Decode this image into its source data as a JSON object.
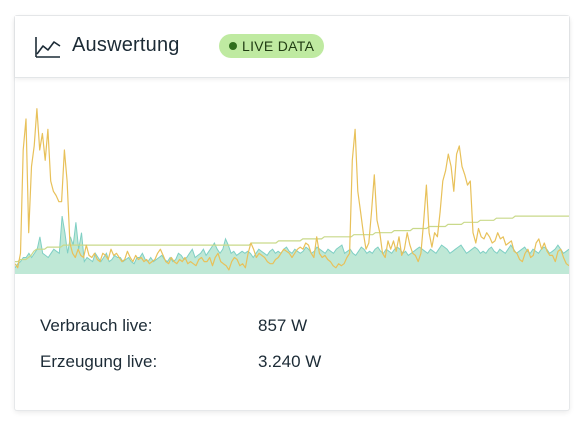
{
  "header": {
    "title": "Auswertung",
    "live_badge": "LIVE DATA",
    "icon": "line-chart-icon"
  },
  "colors": {
    "consumption_line": "#e8c15a",
    "base_line": "#c9d98a",
    "production_area": "#bfe8d6",
    "production_stroke": "#7fcfc4",
    "live_badge_bg": "#bfeaa1",
    "live_dot": "#2f6e1b"
  },
  "chart_data": {
    "type": "area",
    "series": [
      {
        "values": [
          5,
          3,
          10,
          60,
          75,
          20,
          52,
          62,
          80,
          60,
          68,
          55,
          70,
          45,
          40,
          38,
          35,
          35,
          60,
          45,
          15,
          10,
          8,
          12,
          9,
          8,
          14,
          9,
          8,
          10,
          7,
          6,
          10,
          9,
          7,
          12,
          9,
          10,
          8,
          6,
          7,
          11,
          8,
          6,
          9,
          7,
          8,
          6,
          7,
          5,
          6,
          7,
          10,
          12,
          9,
          6,
          5,
          8,
          6,
          5,
          7,
          6,
          8,
          5,
          6,
          5,
          4,
          7,
          8,
          6,
          6,
          8,
          4,
          8,
          10,
          6,
          5,
          4,
          2,
          6,
          8,
          7,
          4,
          5,
          3,
          10,
          15,
          12,
          8,
          10,
          9,
          8,
          6,
          5,
          5,
          7,
          8,
          10,
          12,
          11,
          10,
          8,
          10,
          12,
          13,
          12,
          15,
          14,
          10,
          8,
          18,
          10,
          8,
          9,
          7,
          6,
          4,
          3,
          5,
          4,
          5,
          8,
          10,
          55,
          70,
          40,
          30,
          20,
          12,
          15,
          30,
          48,
          26,
          20,
          10,
          8,
          16,
          12,
          16,
          11,
          18,
          9,
          12,
          20,
          14,
          10,
          9,
          6,
          10,
          25,
          43,
          20,
          13,
          20,
          18,
          30,
          45,
          50,
          58,
          52,
          40,
          58,
          62,
          52,
          48,
          43,
          45,
          20,
          15,
          22,
          18,
          17,
          20,
          18,
          15,
          16,
          20,
          17,
          18,
          14,
          15,
          16,
          11,
          10,
          7,
          6,
          10,
          12,
          8,
          9,
          15,
          17,
          12,
          15,
          11,
          9,
          9,
          6,
          11,
          12,
          8,
          5,
          4
        ]
      },
      {
        "values": [
          6,
          6,
          7,
          7,
          7,
          8,
          9,
          11,
          12,
          12,
          12,
          12,
          13,
          13,
          13,
          13,
          13,
          13,
          14,
          14,
          14,
          14,
          14,
          14,
          14,
          14,
          14,
          14,
          14,
          14,
          14,
          14,
          14,
          14,
          14,
          14,
          14,
          14,
          14,
          14,
          14,
          14,
          14,
          14,
          14,
          14,
          14,
          14,
          14,
          14,
          14,
          14,
          14,
          14,
          14,
          14,
          14,
          14,
          14,
          14,
          14,
          14,
          14,
          14,
          14,
          14,
          14,
          14,
          14,
          14,
          14,
          14,
          14,
          14,
          14,
          14,
          14,
          14,
          14,
          14,
          14,
          14,
          14,
          14,
          14,
          14,
          14,
          14,
          15,
          15,
          15,
          15,
          15,
          15,
          15,
          15,
          15,
          15,
          16,
          16,
          16,
          16,
          16,
          16,
          16,
          16,
          16,
          17,
          17,
          17,
          17,
          17,
          17,
          17,
          17,
          18,
          18,
          18,
          18,
          18,
          18,
          18,
          18,
          18,
          18,
          18,
          19,
          19,
          19,
          19,
          19,
          19,
          19,
          19,
          20,
          20,
          20,
          20,
          20,
          20,
          20,
          21,
          21,
          21,
          21,
          21,
          21,
          21,
          22,
          22,
          22,
          22,
          22,
          22,
          23,
          23,
          23,
          23,
          23,
          23,
          23,
          24,
          24,
          24,
          24,
          24,
          24,
          25,
          25,
          25,
          25,
          25,
          25,
          26,
          26,
          26,
          26,
          26,
          26,
          27,
          27,
          27,
          27,
          27,
          27,
          27,
          28,
          28,
          28,
          28,
          28,
          28,
          28,
          28,
          28,
          28,
          28,
          28,
          28,
          28,
          28,
          28,
          28,
          28,
          28,
          28,
          28
        ]
      },
      {
        "values": [
          3,
          5,
          6,
          8,
          8,
          10,
          8,
          10,
          12,
          18,
          10,
          9,
          8,
          10,
          12,
          11,
          10,
          28,
          20,
          10,
          18,
          14,
          25,
          12,
          20,
          6,
          8,
          7,
          6,
          10,
          8,
          6,
          8,
          10,
          6,
          7,
          9,
          8,
          8,
          6,
          7,
          8,
          6,
          5,
          8,
          8,
          10,
          7,
          6,
          8,
          6,
          7,
          8,
          9,
          7,
          6,
          8,
          6,
          7,
          10,
          9,
          7,
          8,
          10,
          12,
          8,
          9,
          10,
          12,
          9,
          11,
          13,
          15,
          12,
          10,
          12,
          17,
          14,
          10,
          11,
          9,
          10,
          11,
          10,
          11,
          10,
          8,
          10,
          12,
          11,
          10,
          9,
          11,
          12,
          10,
          11,
          10,
          12,
          13,
          11,
          10,
          12,
          11,
          10,
          11,
          13,
          12,
          10,
          11,
          13,
          12,
          11,
          10,
          12,
          11,
          10,
          12,
          13,
          14,
          10,
          11,
          12,
          10,
          9,
          11,
          13,
          12,
          10,
          11,
          10,
          12,
          13,
          11,
          10,
          12,
          11,
          10,
          12,
          13,
          12,
          10,
          11,
          9,
          10,
          11,
          12,
          13,
          12,
          11,
          10,
          12,
          11,
          10,
          12,
          14,
          13,
          12,
          10,
          11,
          12,
          13,
          14,
          12,
          10,
          11,
          12,
          13,
          12,
          10,
          11,
          10,
          12,
          13,
          11,
          10,
          12,
          11,
          10,
          12,
          14,
          12,
          10,
          11,
          12,
          13,
          11,
          10,
          12,
          11,
          10,
          12,
          13,
          12,
          10,
          11,
          12,
          14,
          12,
          10,
          11,
          12
        ]
      }
    ],
    "ylim": [
      0,
      90
    ]
  },
  "stats": [
    {
      "label": "Verbrauch live:",
      "value": "857 W"
    },
    {
      "label": "Erzeugung live:",
      "value": "3.240 W"
    }
  ]
}
